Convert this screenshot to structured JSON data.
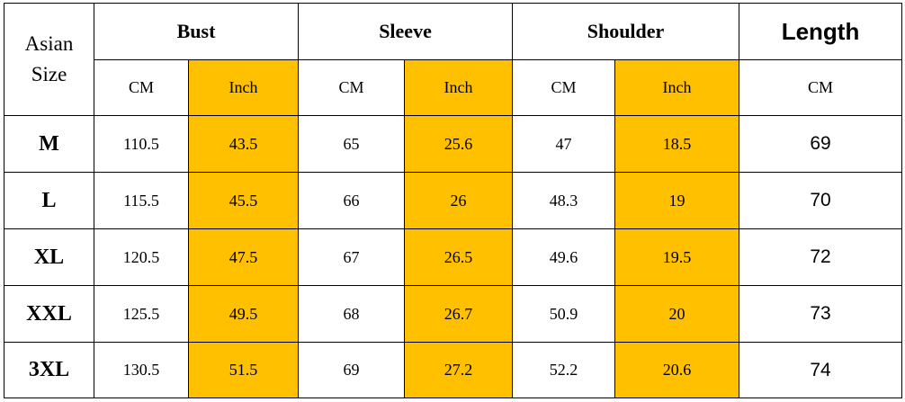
{
  "header": {
    "corner": "Asian Size",
    "groups": [
      "Bust",
      "Sleeve",
      "Shoulder",
      "Length"
    ],
    "units": [
      "CM",
      "Inch",
      "CM",
      "Inch",
      "CM",
      "Inch",
      "CM"
    ]
  },
  "rows": [
    {
      "size": "M",
      "values": [
        "110.5",
        "43.5",
        "65",
        "25.6",
        "47",
        "18.5",
        "69"
      ]
    },
    {
      "size": "L",
      "values": [
        "115.5",
        "45.5",
        "66",
        "26",
        "48.3",
        "19",
        "70"
      ]
    },
    {
      "size": "XL",
      "values": [
        "120.5",
        "47.5",
        "67",
        "26.5",
        "49.6",
        "19.5",
        "72"
      ]
    },
    {
      "size": "XXL",
      "values": [
        "125.5",
        "49.5",
        "68",
        "26.7",
        "50.9",
        "20",
        "73"
      ]
    },
    {
      "size": "3XL",
      "values": [
        "130.5",
        "51.5",
        "69",
        "27.2",
        "52.2",
        "20.6",
        "74"
      ]
    }
  ]
}
